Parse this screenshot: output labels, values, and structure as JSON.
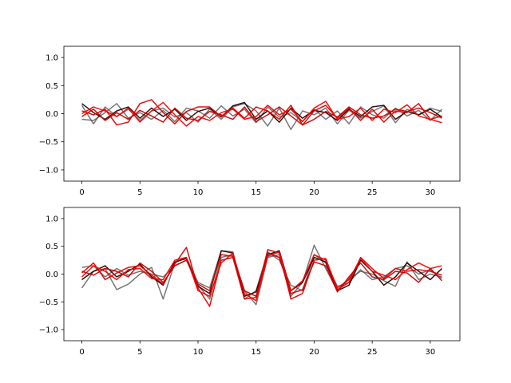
{
  "chart_data": [
    {
      "type": "line",
      "x": [
        0,
        1,
        2,
        3,
        4,
        5,
        6,
        7,
        8,
        9,
        10,
        11,
        12,
        13,
        14,
        15,
        16,
        17,
        18,
        19,
        20,
        21,
        22,
        23,
        24,
        25,
        26,
        27,
        28,
        29,
        30,
        31
      ],
      "xlim": [
        -1.55,
        32.55
      ],
      "ylim": [
        -1.2,
        1.2
      ],
      "xticks": [
        0,
        5,
        10,
        15,
        20,
        25,
        30
      ],
      "yticks": [
        1.0,
        0.5,
        0.0,
        -0.5,
        -1.0
      ],
      "xtick_labels": [
        "0",
        "5",
        "10",
        "15",
        "20",
        "25",
        "30"
      ],
      "ytick_labels": [
        "1.0",
        "0.5",
        "0.0",
        "−0.5",
        "−1.0"
      ],
      "grid": false,
      "series": [
        {
          "color": "#555555",
          "values": [
            0.15,
            -0.18,
            0.12,
            -0.05,
            0.08,
            -0.12,
            0.05,
            0.1,
            -0.06,
            0.02,
            -0.15,
            0.08,
            -0.1,
            0.12,
            0.18,
            0.05,
            -0.22,
            0.1,
            -0.28,
            0.05,
            -0.02,
            0.1,
            -0.18,
            0.06,
            -0.08,
            0.04,
            0.14,
            -0.16,
            0.08,
            -0.02,
            0.1,
            0.04
          ]
        },
        {
          "color": "#555555",
          "values": [
            -0.1,
            -0.12,
            0.02,
            0.18,
            -0.08,
            0.02,
            -0.1,
            0.06,
            -0.14,
            0.1,
            0.05,
            -0.08,
            0.14,
            -0.04,
            0.08,
            -0.16,
            0.12,
            -0.06,
            0.02,
            -0.14,
            0.08,
            -0.1,
            0.05,
            -0.18,
            0.12,
            -0.02,
            -0.08,
            0.1,
            -0.04,
            0.06,
            -0.12,
            0.08
          ]
        },
        {
          "color": "#2a0000",
          "values": [
            0.18,
            0.02,
            -0.1,
            0.05,
            0.12,
            -0.08,
            0.1,
            -0.05,
            0.08,
            -0.12,
            0.04,
            0.1,
            -0.06,
            0.14,
            0.2,
            -0.1,
            0.05,
            -0.15,
            0.1,
            -0.08,
            0.06,
            0.02,
            -0.12,
            0.08,
            -0.05,
            0.12,
            0.15,
            -0.1,
            0.04,
            -0.02,
            0.08,
            -0.06
          ]
        },
        {
          "color": "#e00000",
          "values": [
            0.05,
            -0.02,
            0.08,
            -0.2,
            -0.15,
            0.18,
            0.25,
            0.02,
            -0.18,
            0.04,
            0.12,
            0.12,
            -0.05,
            0.1,
            -0.08,
            0.12,
            0.05,
            -0.1,
            0.15,
            -0.2,
            0.05,
            0.15,
            -0.08,
            0.1,
            -0.12,
            0.08,
            -0.15,
            0.05,
            0.02,
            0.18,
            -0.1,
            -0.04
          ]
        },
        {
          "color": "#ff0000",
          "values": [
            0.0,
            0.12,
            0.05,
            -0.05,
            0.1,
            -0.15,
            0.05,
            0.2,
            -0.02,
            -0.22,
            -0.05,
            -0.12,
            0.02,
            0.08,
            -0.1,
            -0.05,
            0.15,
            -0.02,
            0.08,
            -0.14,
            0.1,
            0.22,
            -0.1,
            -0.05,
            0.1,
            -0.12,
            0.08,
            0.02,
            0.16,
            -0.04,
            -0.1,
            -0.16
          ]
        },
        {
          "color": "#cc0000",
          "values": [
            -0.05,
            0.08,
            -0.12,
            0.02,
            -0.1,
            0.06,
            -0.04,
            -0.15,
            0.1,
            -0.08,
            -0.12,
            0.04,
            -0.02,
            -0.1,
            0.12,
            -0.14,
            -0.02,
            0.12,
            -0.04,
            -0.2,
            -0.1,
            0.04,
            -0.06,
            0.12,
            -0.02,
            -0.08,
            -0.04,
            0.08,
            0.04,
            0.1,
            0.02,
            -0.08
          ]
        }
      ]
    },
    {
      "type": "line",
      "x": [
        0,
        1,
        2,
        3,
        4,
        5,
        6,
        7,
        8,
        9,
        10,
        11,
        12,
        13,
        14,
        15,
        16,
        17,
        18,
        19,
        20,
        21,
        22,
        23,
        24,
        25,
        26,
        27,
        28,
        29,
        30,
        31
      ],
      "xlim": [
        -1.55,
        32.55
      ],
      "ylim": [
        -1.2,
        1.2
      ],
      "xticks": [
        0,
        5,
        10,
        15,
        20,
        25,
        30
      ],
      "yticks": [
        1.0,
        0.5,
        0.0,
        -0.5,
        -1.0
      ],
      "xtick_labels": [
        "0",
        "5",
        "10",
        "15",
        "20",
        "25",
        "30"
      ],
      "ytick_labels": [
        "1.0",
        "0.5",
        "0.0",
        "−0.5",
        "−1.0"
      ],
      "grid": false,
      "series": [
        {
          "color": "#555555",
          "values": [
            0.12,
            0.15,
            -0.05,
            0.1,
            -0.02,
            0.05,
            0.0,
            -0.05,
            0.15,
            0.25,
            -0.2,
            -0.45,
            0.3,
            0.35,
            -0.3,
            -0.55,
            0.3,
            0.35,
            -0.4,
            -0.15,
            0.52,
            0.1,
            -0.3,
            -0.08,
            0.05,
            0.0,
            -0.12,
            -0.22,
            0.22,
            -0.1,
            0.0,
            -0.05
          ]
        },
        {
          "color": "#555555",
          "values": [
            -0.25,
            0.05,
            0.1,
            -0.28,
            -0.18,
            0.0,
            0.12,
            -0.45,
            0.2,
            0.3,
            -0.15,
            -0.25,
            0.42,
            0.4,
            -0.45,
            -0.3,
            0.4,
            0.25,
            -0.2,
            -0.3,
            0.35,
            0.2,
            -0.22,
            -0.15,
            0.08,
            -0.1,
            -0.05,
            0.1,
            0.15,
            0.0,
            0.08,
            -0.08
          ]
        },
        {
          "color": "#2a0000",
          "values": [
            -0.1,
            0.05,
            0.15,
            -0.05,
            0.05,
            0.18,
            -0.05,
            -0.2,
            0.22,
            0.28,
            -0.22,
            -0.35,
            0.42,
            0.38,
            -0.4,
            -0.32,
            0.35,
            0.42,
            -0.3,
            -0.15,
            0.3,
            0.22,
            -0.3,
            -0.2,
            0.25,
            0.05,
            -0.2,
            -0.05,
            0.2,
            0.05,
            -0.1,
            0.1
          ]
        },
        {
          "color": "#e00000",
          "values": [
            0.02,
            0.2,
            -0.1,
            0.02,
            0.12,
            0.15,
            -0.02,
            -0.18,
            0.18,
            0.48,
            -0.25,
            -0.58,
            0.25,
            0.3,
            -0.45,
            -0.42,
            0.44,
            0.38,
            -0.45,
            -0.35,
            0.25,
            0.28,
            -0.28,
            -0.15,
            0.3,
            0.1,
            -0.08,
            0.1,
            0.05,
            0.08,
            0.05,
            -0.02
          ]
        },
        {
          "color": "#ff0000",
          "values": [
            -0.05,
            0.15,
            0.05,
            -0.1,
            0.08,
            0.1,
            -0.08,
            -0.1,
            0.25,
            0.3,
            -0.3,
            -0.4,
            0.2,
            0.38,
            -0.35,
            -0.48,
            0.32,
            0.4,
            -0.3,
            -0.12,
            0.35,
            0.25,
            -0.25,
            -0.1,
            0.28,
            0.05,
            -0.02,
            -0.1,
            0.08,
            0.2,
            0.1,
            0.15
          ]
        },
        {
          "color": "#cc0000",
          "values": [
            0.05,
            -0.02,
            0.1,
            0.05,
            -0.05,
            0.2,
            0.05,
            -0.15,
            0.15,
            0.25,
            -0.18,
            -0.3,
            0.35,
            0.32,
            -0.3,
            -0.4,
            0.38,
            0.3,
            -0.35,
            -0.28,
            0.22,
            0.15,
            -0.32,
            -0.05,
            0.2,
            -0.05,
            -0.1,
            0.05,
            0.02,
            -0.15,
            0.1,
            -0.12
          ]
        }
      ]
    }
  ]
}
